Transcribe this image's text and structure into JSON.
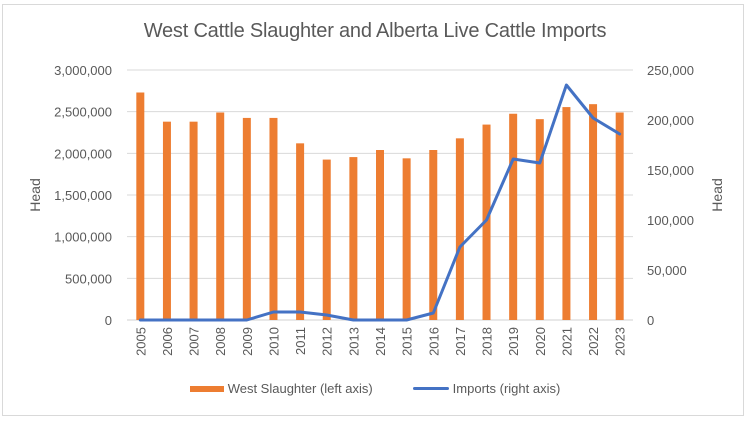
{
  "chart_data": {
    "type": "bar",
    "combo": "bar+line (dual axis)",
    "title": "West Cattle Slaughter and Alberta Live Cattle Imports",
    "xlabel": "",
    "ylabel": "Head",
    "ylabel_right": "Head",
    "ylim": [
      0,
      3000000
    ],
    "ylim_right": [
      0,
      250000
    ],
    "yticks": [
      "0",
      "500,000",
      "1,000,000",
      "1,500,000",
      "2,000,000",
      "2,500,000",
      "3,000,000"
    ],
    "yticks_right": [
      "0",
      "50,000",
      "100,000",
      "150,000",
      "200,000",
      "250,000"
    ],
    "grid": true,
    "legend_position": "bottom",
    "categories": [
      "2005",
      "2006",
      "2007",
      "2008",
      "2009",
      "2010",
      "2011",
      "2012",
      "2013",
      "2014",
      "2015",
      "2016",
      "2017",
      "2018",
      "2019",
      "2020",
      "2021",
      "2022",
      "2023"
    ],
    "series": [
      {
        "name": "West Slaughter (left axis)",
        "type": "bar",
        "axis": "left",
        "color": "#ED7D31",
        "values": [
          2730000,
          2380000,
          2380000,
          2490000,
          2425000,
          2425000,
          2120000,
          1925000,
          1955000,
          2040000,
          1940000,
          2040000,
          2180000,
          2345000,
          2475000,
          2410000,
          2555000,
          2590000,
          2490000
        ]
      },
      {
        "name": "Imports (right axis)",
        "type": "line",
        "axis": "right",
        "color": "#4472C4",
        "values": [
          0,
          0,
          0,
          0,
          0,
          8000,
          8000,
          5000,
          0,
          0,
          0,
          7000,
          73000,
          100000,
          161000,
          157000,
          235000,
          202000,
          186000
        ]
      }
    ]
  },
  "legend": {
    "items": [
      {
        "label": "West Slaughter (left axis)",
        "swatch": "bar",
        "color": "#ED7D31"
      },
      {
        "label": "Imports (right axis)",
        "swatch": "line",
        "color": "#4472C4"
      }
    ]
  }
}
